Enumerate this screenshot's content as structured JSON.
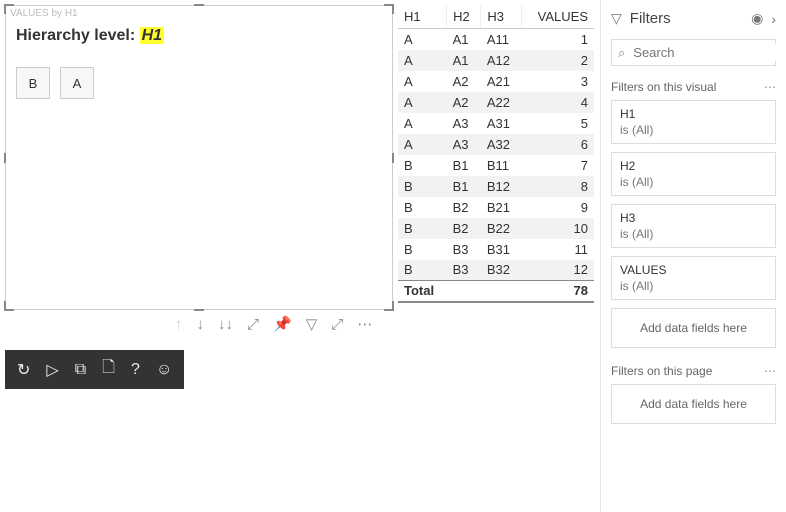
{
  "visual": {
    "caption": "VALUES by H1",
    "level_label": "Hierarchy level: ",
    "level_value": "H1",
    "chips": [
      "B",
      "A"
    ]
  },
  "action_bar": {
    "items": [
      {
        "name": "drill-up-icon",
        "glyph": "↑",
        "disabled": true
      },
      {
        "name": "drill-down-icon",
        "glyph": "↓",
        "disabled": false
      },
      {
        "name": "expand-down-icon",
        "glyph": "↓↓",
        "disabled": false
      },
      {
        "name": "expand-all-icon",
        "glyph": "⤢",
        "disabled": false
      },
      {
        "name": "pin-icon",
        "glyph": "📌",
        "disabled": false
      },
      {
        "name": "focus-filter-icon",
        "glyph": "▽",
        "disabled": false
      },
      {
        "name": "focus-mode-icon",
        "glyph": "⤢",
        "disabled": false
      },
      {
        "name": "more-options-icon",
        "glyph": "⋯",
        "disabled": false
      }
    ]
  },
  "dark_bar": {
    "items": [
      {
        "name": "refresh-icon",
        "glyph": "↻"
      },
      {
        "name": "play-icon",
        "glyph": "▷"
      },
      {
        "name": "copy-icon",
        "glyph": "⧉"
      },
      {
        "name": "new-page-icon",
        "glyph": "🗋"
      },
      {
        "name": "help-icon",
        "glyph": "?"
      },
      {
        "name": "feedback-icon",
        "glyph": "☺"
      }
    ]
  },
  "table": {
    "columns": [
      "H1",
      "H2",
      "H3",
      "VALUES"
    ],
    "align": [
      "left",
      "left",
      "left",
      "right"
    ],
    "rows": [
      [
        "A",
        "A1",
        "A11",
        "1"
      ],
      [
        "A",
        "A1",
        "A12",
        "2"
      ],
      [
        "A",
        "A2",
        "A21",
        "3"
      ],
      [
        "A",
        "A2",
        "A22",
        "4"
      ],
      [
        "A",
        "A3",
        "A31",
        "5"
      ],
      [
        "A",
        "A3",
        "A32",
        "6"
      ],
      [
        "B",
        "B1",
        "B11",
        "7"
      ],
      [
        "B",
        "B1",
        "B12",
        "8"
      ],
      [
        "B",
        "B2",
        "B21",
        "9"
      ],
      [
        "B",
        "B2",
        "B22",
        "10"
      ],
      [
        "B",
        "B3",
        "B31",
        "11"
      ],
      [
        "B",
        "B3",
        "B32",
        "12"
      ]
    ],
    "total_label": "Total",
    "total_value": "78",
    "header_bg": "#ffffff",
    "alt_row_bg": "#f2f2f2"
  },
  "filters": {
    "title": "Filters",
    "search_placeholder": "Search",
    "sections": [
      {
        "title": "Filters on this visual",
        "cards": [
          {
            "name": "H1",
            "cond": "is (All)"
          },
          {
            "name": "H2",
            "cond": "is (All)"
          },
          {
            "name": "H3",
            "cond": "is (All)"
          },
          {
            "name": "VALUES",
            "cond": "is (All)"
          }
        ],
        "drop": "Add data fields here"
      },
      {
        "title": "Filters on this page",
        "cards": [],
        "drop": "Add data fields here"
      }
    ]
  }
}
